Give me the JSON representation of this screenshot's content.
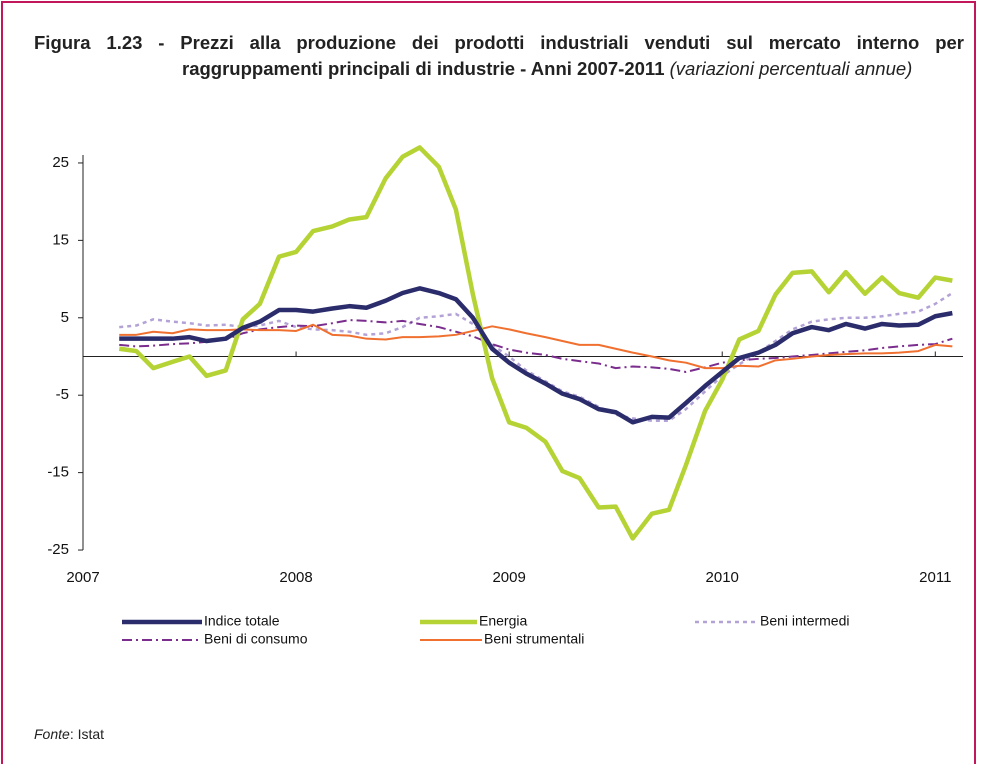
{
  "chart_data": {
    "type": "line",
    "title": "Figura 1.23 - Prezzi alla produzione dei prodotti industriali venduti sul mercato interno per raggruppamenti principali di industrie - Anni 2007-2011",
    "subtitle": "(variazioni percentuali annue)",
    "source_label": "Fonte",
    "source": ": Istat",
    "x": [
      2007.17,
      2007.25,
      2007.33,
      2007.42,
      2007.5,
      2007.58,
      2007.67,
      2007.75,
      2007.83,
      2007.92,
      2008,
      2008.08,
      2008.17,
      2008.25,
      2008.33,
      2008.42,
      2008.5,
      2008.58,
      2008.67,
      2008.75,
      2008.83,
      2008.92,
      2009,
      2009.08,
      2009.17,
      2009.25,
      2009.33,
      2009.42,
      2009.5,
      2009.58,
      2009.67,
      2009.75,
      2009.83,
      2009.92,
      2010,
      2010.08,
      2010.17,
      2010.25,
      2010.33,
      2010.42,
      2010.5,
      2010.58,
      2010.67,
      2010.75,
      2010.83,
      2010.92,
      2011,
      2011.08
    ],
    "xlim": [
      2007,
      2011.13
    ],
    "xticks": [
      2007,
      2008,
      2009,
      2010,
      2011
    ],
    "ylim": [
      -25.5,
      27.5
    ],
    "yticks": [
      25,
      15,
      5,
      -5,
      -15,
      -25
    ],
    "series": [
      {
        "name": "Beni intermedi",
        "color": "#b3a2d6",
        "dash": "4,4",
        "width": 2.5,
        "values": [
          3.8,
          4.0,
          4.8,
          4.5,
          4.3,
          4.0,
          4.1,
          3.8,
          4.0,
          4.6,
          3.8,
          3.5,
          3.4,
          3.2,
          2.8,
          3.0,
          3.8,
          5.0,
          5.2,
          5.5,
          4.2,
          1.5,
          0,
          -1.8,
          -3.2,
          -4.5,
          -5.2,
          -6.5,
          -7.5,
          -8.0,
          -8.3,
          -8.3,
          -6.8,
          -4.5,
          -2.5,
          -1.0,
          0.5,
          2.0,
          3.5,
          4.5,
          4.8,
          5.0,
          5.0,
          5.2,
          5.5,
          5.8,
          6.8,
          8.2
        ]
      },
      {
        "name": "Beni di consumo",
        "color": "#7b2d8e",
        "dash": "10,4,2,4",
        "width": 2,
        "values": [
          1.5,
          1.3,
          1.4,
          1.6,
          1.7,
          1.9,
          2.2,
          3.0,
          3.5,
          3.8,
          4.0,
          3.9,
          4.3,
          4.7,
          4.6,
          4.4,
          4.6,
          4.2,
          3.8,
          3.2,
          2.6,
          1.6,
          0.9,
          0.5,
          0.2,
          -0.3,
          -0.6,
          -0.9,
          -1.5,
          -1.3,
          -1.4,
          -1.6,
          -2.0,
          -1.4,
          -0.8,
          -0.5,
          -0.3,
          -0.2,
          0,
          0.2,
          0.4,
          0.6,
          0.8,
          1.1,
          1.3,
          1.5,
          1.6,
          2.3
        ]
      },
      {
        "name": "Beni strumentali",
        "color": "#f07030",
        "dash": "none",
        "width": 2,
        "values": [
          2.8,
          2.8,
          3.2,
          3.0,
          3.5,
          3.4,
          3.4,
          3.5,
          3.4,
          3.4,
          3.3,
          4.1,
          2.8,
          2.7,
          2.3,
          2.2,
          2.5,
          2.5,
          2.6,
          2.8,
          3.3,
          3.9,
          3.5,
          3.0,
          2.5,
          2.0,
          1.5,
          1.5,
          1.0,
          0.5,
          0,
          -0.5,
          -0.8,
          -1.5,
          -1.5,
          -1.2,
          -1.3,
          -0.5,
          -0.3,
          0,
          0.2,
          0.3,
          0.4,
          0.4,
          0.5,
          0.7,
          1.5,
          1.3
        ]
      },
      {
        "name": "Energia",
        "color": "#b5d334",
        "dash": "none",
        "width": 4.5,
        "values": [
          1.0,
          0.7,
          -1.5,
          -0.7,
          0,
          -2.5,
          -1.8,
          4.8,
          6.8,
          12.9,
          13.5,
          16.2,
          16.8,
          17.7,
          18.0,
          23.0,
          25.8,
          27.0,
          24.5,
          19.0,
          8.0,
          -2.8,
          -8.5,
          -9.2,
          -11.0,
          -14.8,
          -15.7,
          -19.5,
          -19.4,
          -23.5,
          -20.3,
          -19.8,
          -14.0,
          -7.0,
          -3.0,
          2.2,
          3.3,
          8.0,
          10.8,
          11.0,
          8.3,
          10.9,
          8.1,
          10.2,
          8.2,
          7.6,
          10.2,
          9.8
        ]
      },
      {
        "name": "Indice totale",
        "color": "#2b2c6b",
        "dash": "none",
        "width": 4.5,
        "values": [
          2.3,
          2.3,
          2.3,
          2.3,
          2.5,
          2.0,
          2.3,
          3.7,
          4.5,
          6.0,
          6.0,
          5.8,
          6.2,
          6.5,
          6.3,
          7.2,
          8.2,
          8.8,
          8.2,
          7.4,
          5.0,
          1.0,
          -0.8,
          -2.2,
          -3.5,
          -4.8,
          -5.5,
          -6.8,
          -7.2,
          -8.5,
          -7.8,
          -7.9,
          -6.0,
          -3.8,
          -2.0,
          -0.2,
          0.5,
          1.5,
          3.0,
          3.8,
          3.4,
          4.2,
          3.6,
          4.2,
          4.0,
          4.1,
          5.2,
          5.6
        ]
      }
    ]
  }
}
